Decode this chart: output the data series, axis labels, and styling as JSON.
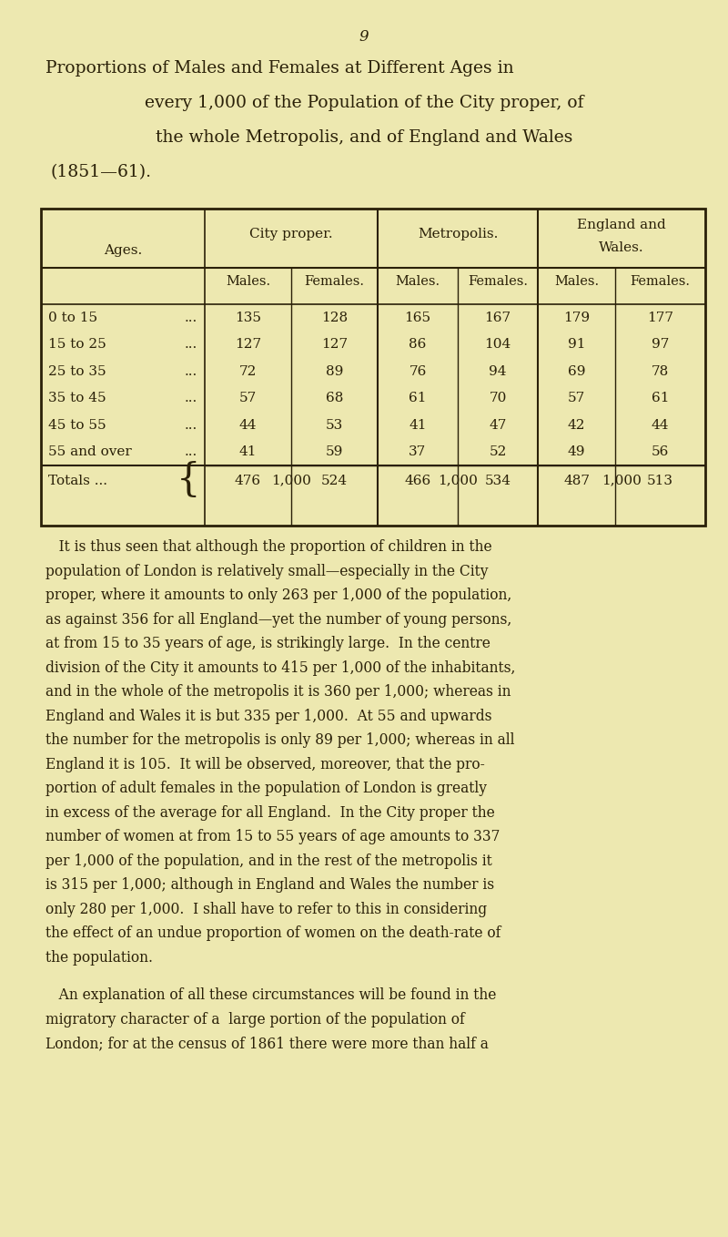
{
  "page_number": "9",
  "background_color": "#ede8b0",
  "text_color": "#2a2008",
  "title_lines": [
    [
      "P",
      "roportions of ",
      "M",
      "ales and ",
      "F",
      "emales at ",
      "D",
      "ifferent ",
      "A",
      "ges in"
    ],
    [
      "every 1,000 of the ",
      "P",
      "opulation of the ",
      "C",
      "ity proper, of"
    ],
    [
      "the whole ",
      "M",
      "etropolis, and of ",
      "E",
      "ngland and ",
      "W",
      "ales"
    ],
    [
      "(1851—61)."
    ]
  ],
  "table": {
    "rows": [
      [
        "0 to 15",
        "...",
        "135",
        "128",
        "165",
        "167",
        "179",
        "177"
      ],
      [
        "15 to 25",
        "...",
        "127",
        "127",
        "86",
        "104",
        "91",
        "97"
      ],
      [
        "25 to 35",
        "...",
        "72",
        "89",
        "76",
        "94",
        "69",
        "78"
      ],
      [
        "35 to 45",
        "...",
        "57",
        "68",
        "61",
        "70",
        "57",
        "61"
      ],
      [
        "45 to 55",
        "...",
        "44",
        "53",
        "41",
        "47",
        "42",
        "44"
      ],
      [
        "55 and over",
        "...",
        "41",
        "59",
        "37",
        "52",
        "49",
        "56"
      ]
    ],
    "totals_row1": [
      "476",
      "524",
      "466",
      "534",
      "487",
      "513"
    ],
    "totals_row2": [
      "1,000",
      "1,000",
      "1,000"
    ],
    "totals_label": "Totals ..."
  },
  "para1_lines": [
    "   It is thus seen that although the proportion of children in the",
    "population of London is relatively small—especially in the City",
    "proper, where it amounts to only 263 per 1,000 of the population,",
    "as against 356 for all England—yet the number of young persons,",
    "at from 15 to 35 years of age, is strikingly large.  In the centre",
    "division of the City it amounts to 415 per 1,000 of the inhabitants,",
    "and in the whole of the metropolis it is 360 per 1,000; whereas in",
    "England and Wales it is but 335 per 1,000.  At 55 and upwards",
    "the number for the metropolis is only 89 per 1,000; whereas in all",
    "England it is 105.  It will be observed, moreover, that the pro-",
    "portion of adult females in the population of London is greatly",
    "in excess of the average for all England.  In the City proper the",
    "number of women at from 15 to 55 years of age amounts to 337",
    "per 1,000 of the population, and in the rest of the metropolis it",
    "is 315 per 1,000; although in England and Wales the number is",
    "only 280 per 1,000.  I shall have to refer to this in considering",
    "the effect of an undue proportion of women on the death-rate of",
    "the population."
  ],
  "para2_lines": [
    "   An explanation of all these circumstances will be found in the",
    "migratory character of a  large portion of the population of",
    "London; for at the census of 1861 there were more than half a"
  ]
}
